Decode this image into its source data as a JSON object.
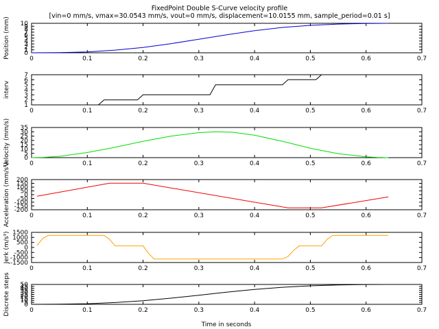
{
  "title_line1": "FixedPoint Double S-Curve velocity profile",
  "title_line2": "[vin=0 mm/s, vmax=30.0543 mm/s, vout=0 mm/s, displacement=10.0155 mm, sample_period=0.01 s]",
  "xlabel": "Time in seconds",
  "chart_data": [
    {
      "type": "line",
      "ylabel": "Position (mm)",
      "color": "#0000cc",
      "xlim": [
        0,
        0.7
      ],
      "ylim": [
        0,
        10
      ],
      "yticks": [
        "0",
        "1",
        "2",
        "3",
        "4",
        "5",
        "6",
        "7",
        "8",
        "9",
        "10"
      ],
      "xticks": [
        "0",
        "0.1",
        "0.2",
        "0.3",
        "0.4",
        "0.5",
        "0.6",
        "0.7"
      ],
      "grid": false,
      "series": [
        {
          "x": [
            0,
            0.05,
            0.1,
            0.15,
            0.2,
            0.25,
            0.3,
            0.35,
            0.4,
            0.45,
            0.5,
            0.55,
            0.6,
            0.64
          ],
          "y": [
            0,
            0.05,
            0.3,
            0.9,
            1.8,
            3.1,
            4.6,
            6.1,
            7.5,
            8.6,
            9.3,
            9.75,
            9.95,
            10.0
          ]
        }
      ]
    },
    {
      "type": "line",
      "ylabel": "interv",
      "color": "#000000",
      "xlim": [
        0,
        0.7
      ],
      "ylim": [
        1,
        7
      ],
      "yticks": [
        "1",
        "2",
        "3",
        "4",
        "5",
        "6",
        "7"
      ],
      "xticks": [
        "0",
        "0.1",
        "0.2",
        "0.3",
        "0.4",
        "0.5",
        "0.6",
        "0.7"
      ],
      "grid": false,
      "series": [
        {
          "x": [
            0,
            0.12,
            0.13,
            0.19,
            0.2,
            0.32,
            0.33,
            0.45,
            0.46,
            0.51,
            0.52,
            0.64
          ],
          "y": [
            1,
            1,
            2,
            2,
            3,
            3,
            5,
            5,
            6,
            6,
            7,
            7
          ]
        }
      ]
    },
    {
      "type": "line",
      "ylabel": "Velocity (mm/s)",
      "color": "#00dd00",
      "xlim": [
        0,
        0.7
      ],
      "ylim": [
        0,
        35
      ],
      "yticks": [
        "0",
        "5",
        "10",
        "15",
        "20",
        "25",
        "30",
        "35"
      ],
      "xticks": [
        "0",
        "0.1",
        "0.2",
        "0.3",
        "0.4",
        "0.5",
        "0.6",
        "0.7"
      ],
      "grid": false,
      "series": [
        {
          "x": [
            0,
            0.02,
            0.05,
            0.1,
            0.15,
            0.2,
            0.25,
            0.3,
            0.33,
            0.36,
            0.4,
            0.45,
            0.5,
            0.55,
            0.6,
            0.62,
            0.64
          ],
          "y": [
            0,
            0.3,
            1.5,
            6,
            12,
            19,
            25,
            29,
            30.05,
            29.5,
            26,
            19,
            11,
            4.5,
            1,
            0.3,
            0
          ]
        }
      ]
    },
    {
      "type": "line",
      "ylabel": "Acceleration (mm/s²)",
      "color": "#ee0000",
      "xlim": [
        0,
        0.7
      ],
      "ylim": [
        -200,
        200
      ],
      "yticks": [
        "-200",
        "-150",
        "-100",
        "-50",
        "0",
        "50",
        "100",
        "150",
        "200"
      ],
      "xticks": [
        "0",
        "0.1",
        "0.2",
        "0.3",
        "0.4",
        "0.5",
        "0.6",
        "0.7"
      ],
      "grid": false,
      "series": [
        {
          "x": [
            0.01,
            0.14,
            0.2,
            0.46,
            0.52,
            0.64
          ],
          "y": [
            -20,
            152,
            152,
            -175,
            -175,
            -30
          ]
        }
      ]
    },
    {
      "type": "line",
      "ylabel": "Jerk (m/s³)",
      "color": "#ffa000",
      "xlim": [
        0,
        0.7
      ],
      "ylim": [
        -1500,
        1500
      ],
      "yticks": [
        "-1500",
        "-1000",
        "-500",
        "0",
        "500",
        "1000",
        "1500"
      ],
      "xticks": [
        "0",
        "0.1",
        "0.2",
        "0.3",
        "0.4",
        "0.5",
        "0.6",
        "0.7"
      ],
      "grid": false,
      "series": [
        {
          "x": [
            0.01,
            0.02,
            0.03,
            0.13,
            0.14,
            0.15,
            0.2,
            0.21,
            0.22,
            0.45,
            0.46,
            0.47,
            0.48,
            0.52,
            0.53,
            0.54,
            0.64
          ],
          "y": [
            200,
            900,
            1200,
            1200,
            800,
            150,
            150,
            -600,
            -1150,
            -1150,
            -900,
            -300,
            150,
            150,
            800,
            1200,
            1200
          ]
        }
      ]
    },
    {
      "type": "line",
      "ylabel": "Discrete steps",
      "color": "#000000",
      "xlim": [
        0,
        0.7
      ],
      "ylim": [
        0,
        50
      ],
      "yticks": [
        "0",
        "5",
        "10",
        "15",
        "20",
        "25",
        "30",
        "35",
        "40",
        "45",
        "50"
      ],
      "xticks": [
        "0",
        "0.1",
        "0.2",
        "0.3",
        "0.4",
        "0.5",
        "0.6",
        "0.7"
      ],
      "grid": false,
      "series": [
        {
          "x": [
            0,
            0.05,
            0.1,
            0.15,
            0.2,
            0.25,
            0.3,
            0.35,
            0.4,
            0.45,
            0.5,
            0.55,
            0.6,
            0.64
          ],
          "y": [
            0,
            0.3,
            1.5,
            4.5,
            9,
            15.5,
            23,
            30.5,
            37.5,
            43,
            46.5,
            48.8,
            49.8,
            50
          ]
        }
      ]
    }
  ]
}
